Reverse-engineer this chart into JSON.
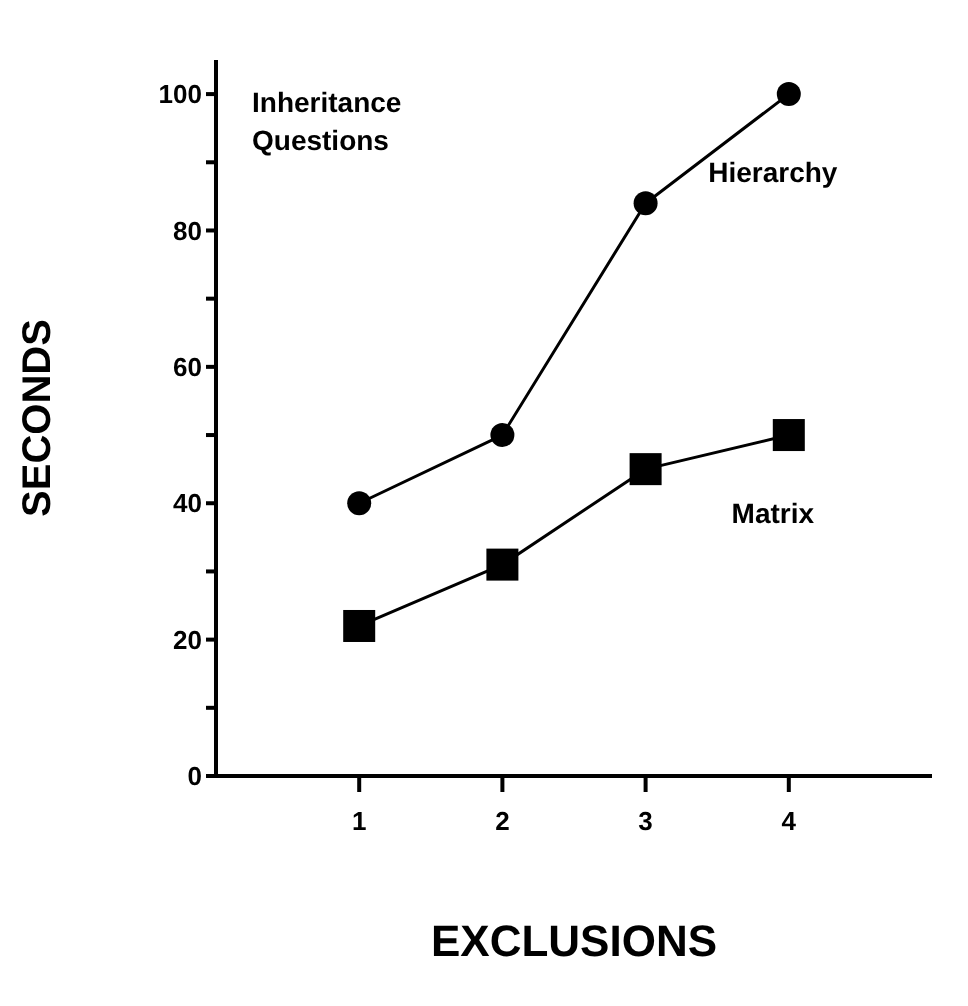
{
  "chart_data": {
    "type": "line",
    "xlabel": "EXCLUSIONS",
    "ylabel": "SECONDS",
    "annotations": [
      "Inheritance Questions"
    ],
    "x": [
      1,
      2,
      3,
      4
    ],
    "xlim": [
      0,
      5
    ],
    "xticks": [
      1,
      2,
      3,
      4
    ],
    "ylim": [
      0,
      105
    ],
    "yticks": [
      0,
      {
        "value": 10,
        "label": null
      },
      20,
      {
        "value": 30,
        "label": null
      },
      40,
      {
        "value": 50,
        "label": null
      },
      60,
      {
        "value": 70,
        "label": null
      },
      80,
      {
        "value": 90,
        "label": null
      },
      100
    ],
    "grid": false,
    "series": [
      {
        "name": "Hierarchy",
        "color": "#000000",
        "marker": "circle",
        "values": [
          40,
          50,
          84,
          100
        ]
      },
      {
        "name": "Matrix",
        "color": "#000000",
        "marker": "square",
        "values": [
          22,
          31,
          45,
          50
        ]
      }
    ]
  }
}
